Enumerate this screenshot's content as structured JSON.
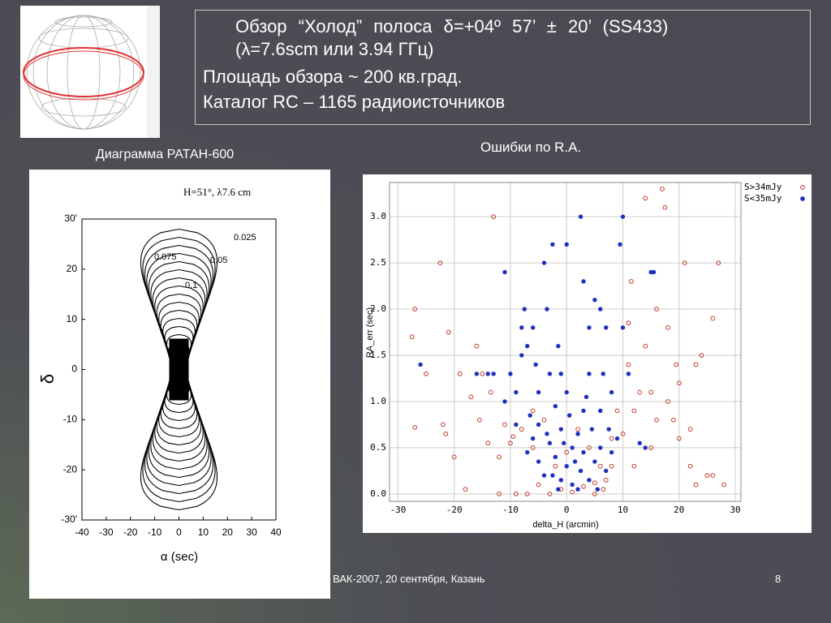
{
  "slide": {
    "title_line1": "Обзор “Холод” полоса δ=+04º 57’ ± 20’ (SS433)",
    "title_line2": "(λ=7.6scm или 3.94 ГГц)",
    "line3": "Площадь обзора ~ 200 кв.град.",
    "line4": "Каталог RC – 1165 радиоисточников",
    "caption_left": "Диаграмма РАТАН-600",
    "caption_right": "Ошибки по R.A.",
    "footer": "ВАК-2007, 20 сентября, Казань",
    "page_number": "8"
  },
  "chart_data": [
    {
      "type": "contour",
      "header": "H=51°,  λ7.6 cm",
      "x_label": "α (sec)",
      "y_label": "δ",
      "annotations": [
        "0.025",
        "0.075",
        "0.05",
        "0.1"
      ],
      "xlim": [
        -40,
        40
      ],
      "ylim": [
        -30,
        30
      ],
      "xticks": [
        -40,
        -30,
        -20,
        -10,
        0,
        10,
        20,
        30,
        40
      ],
      "yticks": [
        {
          "value": 30,
          "label": "30'"
        },
        20,
        10,
        0,
        -10,
        -20,
        {
          "value": -30,
          "label": "-30'"
        }
      ]
    },
    {
      "type": "scatter",
      "x_label": "delta_H (arcmin)",
      "y_label": "RA_err (sec)",
      "xlim": [
        -31.5,
        31
      ],
      "ylim": [
        -0.08,
        3.37
      ],
      "xticks": [
        -30,
        -20,
        -10,
        0,
        10,
        20,
        30
      ],
      "yticks": [
        {
          "value": 0,
          "label": "0.0"
        },
        0.5,
        {
          "value": 1,
          "label": "1.0"
        },
        1.5,
        {
          "value": 2,
          "label": "2.0"
        },
        2.5,
        {
          "value": 3,
          "label": "3.0"
        }
      ],
      "grid": true,
      "legend": "upper right",
      "series": [
        {
          "name": "S>34mJy",
          "color": "#c0392b",
          "marker": "open",
          "x": [
            -27,
            -27.5,
            -27,
            -22.5,
            -25,
            -21,
            -22,
            -21.5,
            -19,
            -20,
            -17,
            -15,
            -13.5,
            -13,
            -11,
            -10,
            -12,
            -12,
            -9,
            -16,
            -15.5,
            -8,
            -6,
            -7,
            -5,
            -3,
            -1,
            1,
            3,
            5,
            4,
            6,
            7,
            8,
            9,
            10,
            11,
            11,
            11.5,
            12,
            13,
            14,
            15,
            16,
            16,
            17,
            17.5,
            14,
            18,
            18,
            19,
            19.5,
            20,
            21,
            22,
            23,
            24,
            25,
            26,
            27,
            28,
            23,
            22,
            26,
            20,
            8,
            -2,
            0,
            -6,
            -18,
            -14,
            -4,
            2,
            12,
            15,
            6.5,
            5,
            -9.5
          ],
          "values": [
            2.0,
            1.7,
            0.72,
            2.5,
            1.3,
            1.75,
            0.75,
            0.65,
            1.3,
            0.4,
            1.05,
            1.3,
            1.1,
            3.0,
            0.75,
            0.55,
            0.4,
            0.0,
            0.0,
            1.6,
            0.8,
            0.7,
            0.9,
            0.0,
            0.1,
            0.0,
            0.05,
            0.02,
            0.08,
            0.0,
            0.5,
            0.3,
            0.15,
            0.6,
            0.9,
            0.65,
            1.4,
            1.85,
            2.3,
            0.3,
            1.1,
            1.6,
            1.1,
            0.8,
            2.0,
            3.3,
            3.1,
            3.2,
            1.0,
            1.8,
            0.8,
            1.4,
            0.6,
            2.5,
            0.7,
            1.4,
            1.5,
            0.2,
            1.9,
            2.5,
            0.1,
            0.1,
            0.3,
            0.2,
            1.2,
            0.3,
            0.3,
            0.45,
            0.5,
            0.05,
            0.55,
            0.8,
            0.7,
            0.9,
            0.5,
            0.05,
            0.12,
            0.62
          ]
        },
        {
          "name": "S<35mJy",
          "color": "#1f2fc0",
          "marker": "filled",
          "x": [
            -26,
            -14,
            -13,
            -10,
            -9,
            -8,
            -7.5,
            -7,
            -6,
            -5.5,
            -5,
            -4,
            -3.5,
            -3,
            -2.5,
            -1.5,
            -1,
            0,
            0,
            2.5,
            3,
            4,
            4,
            5,
            6,
            6.5,
            7,
            8,
            9.5,
            10,
            10,
            11,
            15,
            15.5,
            -11,
            -8,
            -11,
            -9,
            -7,
            -6,
            -5,
            -4,
            -3,
            -2,
            -1,
            0,
            1,
            1,
            2,
            2.5,
            3,
            3,
            4,
            4.5,
            5,
            6,
            6,
            7,
            8,
            9,
            -1,
            0.5,
            -2,
            -3.5,
            1.5,
            -0.5,
            2,
            -1.5,
            14,
            13,
            -16,
            -5,
            7.5,
            3.5,
            -2.5,
            5.5,
            -6.5
          ],
          "values": [
            1.4,
            1.3,
            1.3,
            1.3,
            1.1,
            1.5,
            2.0,
            1.6,
            1.8,
            1.4,
            1.1,
            2.5,
            2.0,
            1.3,
            2.7,
            1.6,
            1.3,
            2.7,
            1.1,
            3.0,
            2.3,
            1.3,
            1.8,
            2.1,
            2.0,
            1.3,
            1.8,
            1.1,
            2.7,
            3.0,
            1.8,
            1.3,
            2.4,
            2.4,
            2.4,
            1.8,
            1.0,
            0.75,
            0.45,
            0.6,
            0.35,
            0.2,
            0.55,
            0.4,
            0.7,
            0.3,
            0.5,
            0.1,
            0.65,
            0.25,
            0.9,
            0.45,
            0.15,
            0.7,
            0.35,
            0.5,
            0.9,
            0.25,
            0.45,
            0.6,
            0.15,
            0.85,
            0.95,
            0.65,
            0.35,
            0.55,
            0.05,
            0.05,
            0.5,
            0.55,
            1.3,
            0.75,
            0.7,
            1.05,
            0.2,
            0.05,
            0.85
          ]
        }
      ]
    }
  ]
}
